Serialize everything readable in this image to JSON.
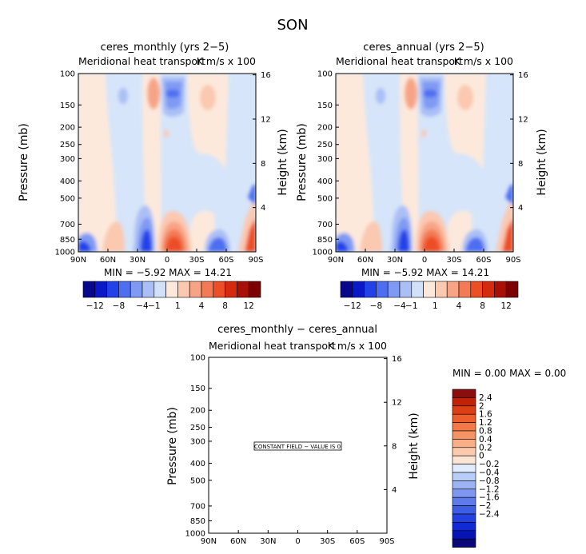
{
  "page": {
    "title": "SON"
  },
  "colors": {
    "neg": [
      "#08088c",
      "#0a19c8",
      "#2142e8",
      "#4d6ef0",
      "#7f9af3",
      "#aabff6",
      "#d2e0fa"
    ],
    "pos": [
      "#fde9dc",
      "#fbc8b0",
      "#f7a486",
      "#f37a55",
      "#ec4e26",
      "#d42b0e",
      "#a90f05",
      "#7c0000"
    ],
    "diff_neg": [
      "#e0ecfc",
      "#b8cdf7",
      "#9bb3f3",
      "#7f98ef",
      "#5f7aea",
      "#3f5ce4",
      "#2440de",
      "#102ad6",
      "#0614b4",
      "#08087a"
    ],
    "diff_pos": [
      "#fde4d4",
      "#fbc9ac",
      "#f9ae88",
      "#f69365",
      "#f37a48",
      "#ed5e2c",
      "#dd3f14",
      "#c02306",
      "#8c0d0d"
    ]
  },
  "chart_data": [
    {
      "type": "heatmap",
      "title": "ceres_monthly (yrs 2−5)",
      "subtitle_left": "Meridional heat transport",
      "subtitle_right": "K m/s x 100",
      "ylabel": "Pressure (mb)",
      "ylabel_right": "Height (km)",
      "yticks": [
        "100",
        "150",
        "200",
        "250",
        "300",
        "400",
        "500",
        "700",
        "850",
        "1000"
      ],
      "yticks_right": [
        "16",
        "12",
        "8",
        "4"
      ],
      "xticks": [
        "90N",
        "60N",
        "30N",
        "0",
        "30S",
        "60S",
        "90S"
      ],
      "stats": "MIN =   −5.92   MAX =   14.21",
      "colorbar_labels": [
        "−12",
        "−8",
        "−4",
        "−1",
        "1",
        "4",
        "8",
        "12"
      ]
    },
    {
      "type": "heatmap",
      "title": "ceres_annual (yrs 2−5)",
      "subtitle_left": "Meridional heat transport",
      "subtitle_right": "K m/s x 100",
      "ylabel": "Pressure (mb)",
      "ylabel_right": "Height (km)",
      "yticks": [
        "100",
        "150",
        "200",
        "250",
        "300",
        "400",
        "500",
        "700",
        "850",
        "1000"
      ],
      "yticks_right": [
        "16",
        "12",
        "8",
        "4"
      ],
      "xticks": [
        "90N",
        "60N",
        "30N",
        "0",
        "30S",
        "60S",
        "90S"
      ],
      "stats": "MIN =   −5.92   MAX =   14.21",
      "colorbar_labels": [
        "−12",
        "−8",
        "−4",
        "−1",
        "1",
        "4",
        "8",
        "12"
      ]
    },
    {
      "type": "heatmap",
      "title": "ceres_monthly − ceres_annual",
      "subtitle_left": "Meridional heat transport",
      "subtitle_right": "K m/s x 100",
      "ylabel": "Pressure (mb)",
      "ylabel_right": "Height (km)",
      "yticks": [
        "100",
        "150",
        "200",
        "250",
        "300",
        "400",
        "500",
        "700",
        "850",
        "1000"
      ],
      "yticks_right": [
        "16",
        "12",
        "8",
        "4"
      ],
      "xticks": [
        "90N",
        "60N",
        "30N",
        "0",
        "30S",
        "60S",
        "90S"
      ],
      "stats": "MIN =      0.00   MAX =      0.00",
      "annotation": "CONSTANT FIELD − VALUE IS 0",
      "colorbar_labels": [
        "2.4",
        "2",
        "1.6",
        "1.2",
        "0.8",
        "0.4",
        "0.2",
        "0",
        "−0.2",
        "−0.4",
        "−0.8",
        "−1.2",
        "−1.6",
        "−2",
        "−2.4"
      ]
    }
  ]
}
